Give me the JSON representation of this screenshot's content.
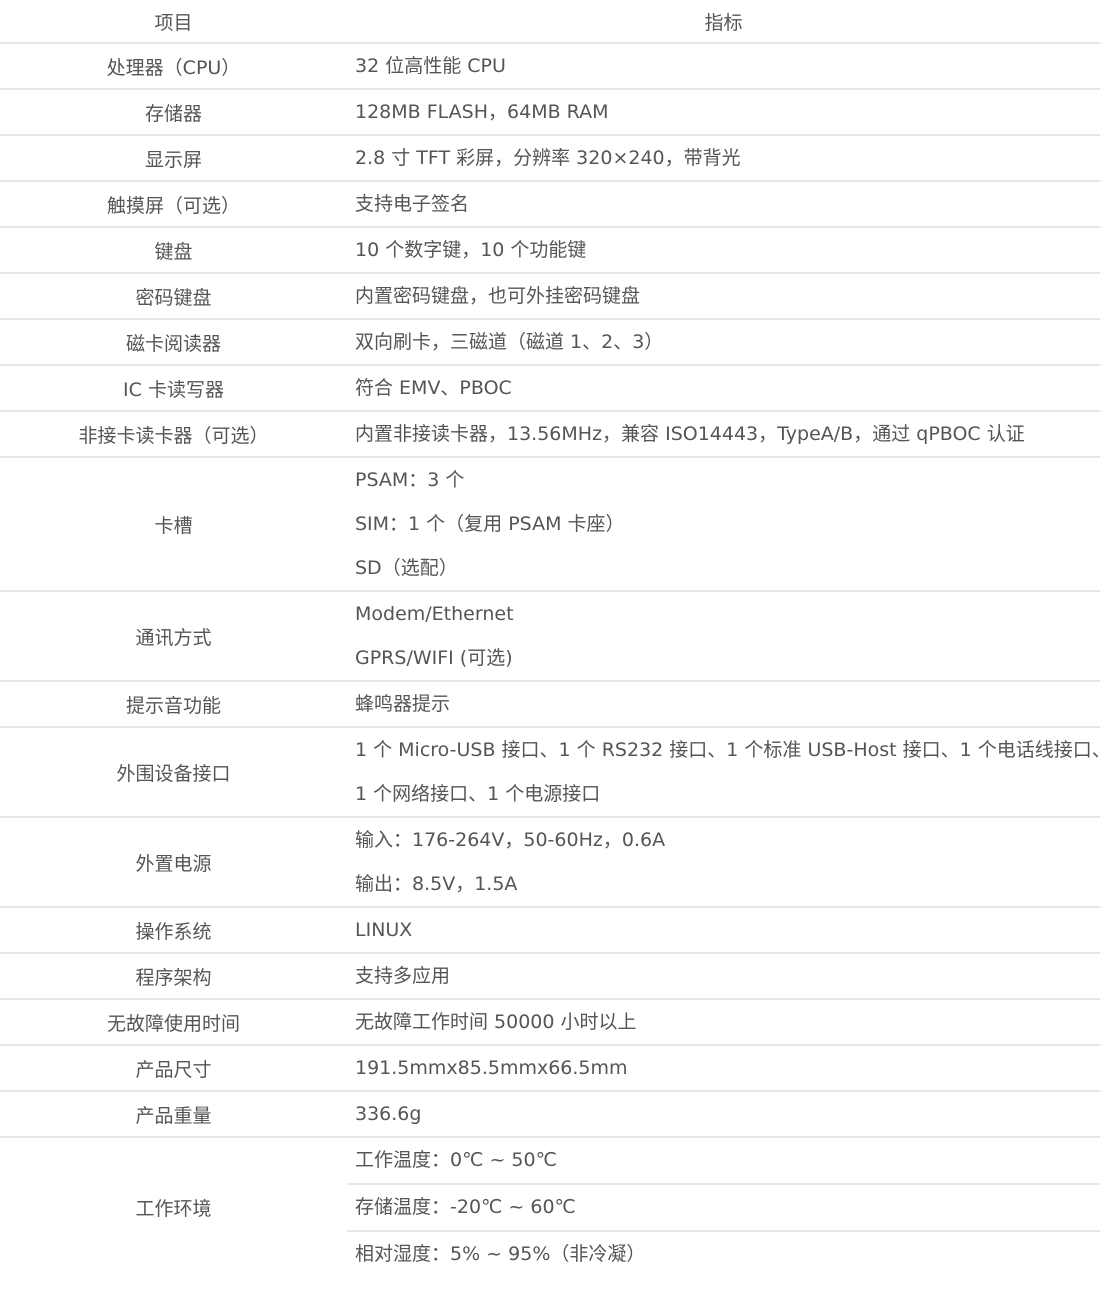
{
  "header": {
    "item": "项目",
    "spec": "指标"
  },
  "rows": [
    {
      "name": "处理器（CPU）",
      "values": [
        "32 位高性能 CPU"
      ]
    },
    {
      "name": "存储器",
      "values": [
        "128MB FLASH，64MB RAM"
      ]
    },
    {
      "name": "显示屏",
      "values": [
        "2.8 寸 TFT 彩屏，分辨率 320×240，带背光"
      ]
    },
    {
      "name": "触摸屏（可选）",
      "values": [
        "支持电子签名"
      ]
    },
    {
      "name": "键盘",
      "values": [
        "10 个数字键，10 个功能键"
      ]
    },
    {
      "name": "密码键盘",
      "values": [
        "内置密码键盘，也可外挂密码键盘"
      ]
    },
    {
      "name": "磁卡阅读器",
      "values": [
        "双向刷卡，三磁道（磁道 1、2、3）"
      ]
    },
    {
      "name": "IC 卡读写器",
      "values": [
        "符合 EMV、PBOC"
      ]
    },
    {
      "name": "非接卡读卡器（可选）",
      "values": [
        "内置非接读卡器，13.56MHz，兼容 ISO14443，TypeA/B，通过 qPBOC 认证"
      ]
    },
    {
      "name": "卡槽",
      "values": [
        "PSAM：3 个",
        "SIM：1 个（复用 PSAM 卡座）",
        "SD（选配）"
      ]
    },
    {
      "name": "通讯方式",
      "values": [
        "Modem/Ethernet",
        "GPRS/WIFI (可选)"
      ]
    },
    {
      "name": "提示音功能",
      "values": [
        "蜂鸣器提示"
      ]
    },
    {
      "name": "外围设备接口",
      "values": [
        "1 个 Micro-USB 接口、1 个 RS232 接口、1 个标准 USB-Host 接口、1 个电话线接口、",
        "1 个网络接口、1 个电源接口"
      ]
    },
    {
      "name": "外置电源",
      "values": [
        "输入：176-264V，50-60Hz，0.6A",
        "输出：8.5V，1.5A"
      ]
    },
    {
      "name": "操作系统",
      "values": [
        "LINUX"
      ]
    },
    {
      "name": "程序架构",
      "values": [
        "支持多应用"
      ]
    },
    {
      "name": "无故障使用时间",
      "values": [
        "无故障工作时间 50000 小时以上"
      ]
    },
    {
      "name": "产品尺寸",
      "values": [
        "191.5mmx85.5mmx66.5mm"
      ]
    },
    {
      "name": "产品重量",
      "values": [
        "336.6g"
      ]
    },
    {
      "name": "工作环境",
      "values": [
        "工作温度：0℃ ~ 50℃",
        "存储温度：-20℃ ~ 60℃",
        "相对湿度：5% ~ 95%（非冷凝）"
      ]
    }
  ]
}
